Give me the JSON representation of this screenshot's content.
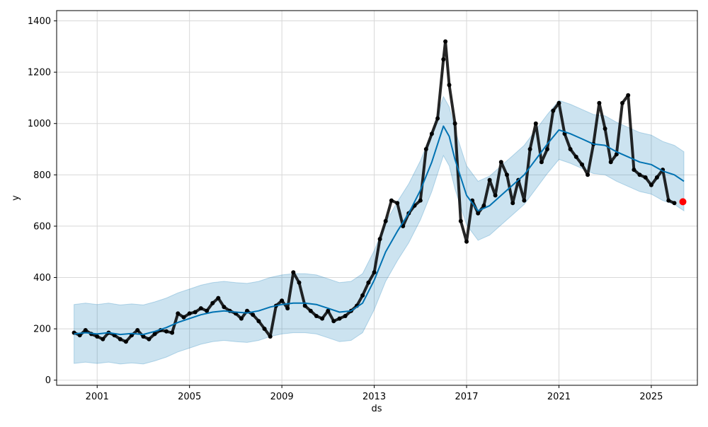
{
  "chart_data": {
    "type": "line",
    "xlabel": "ds",
    "ylabel": "y",
    "xlim": [
      "1999-04-01",
      "2026-12-31"
    ],
    "ylim": [
      -20,
      1440
    ],
    "x_ticks": [
      {
        "date": "2001-01-01",
        "label": "2001"
      },
      {
        "date": "2005-01-01",
        "label": "2005"
      },
      {
        "date": "2009-01-01",
        "label": "2009"
      },
      {
        "date": "2013-01-01",
        "label": "2013"
      },
      {
        "date": "2017-01-01",
        "label": "2017"
      },
      {
        "date": "2021-01-01",
        "label": "2021"
      },
      {
        "date": "2025-01-01",
        "label": "2025"
      }
    ],
    "y_ticks": [
      0,
      200,
      400,
      600,
      800,
      1000,
      1200,
      1400
    ],
    "grid": true,
    "colors": {
      "observed": "#000000",
      "forecast": "#0072B2",
      "interval": "#0072B2",
      "latest": "#ff0000"
    },
    "series": [
      {
        "role": "forecast",
        "points": [
          [
            "2000-01-01",
            180
          ],
          [
            "2000-07-01",
            185
          ],
          [
            "2001-01-01",
            180
          ],
          [
            "2001-07-01",
            185
          ],
          [
            "2002-01-01",
            178
          ],
          [
            "2002-07-01",
            182
          ],
          [
            "2003-01-01",
            178
          ],
          [
            "2003-07-01",
            190
          ],
          [
            "2004-01-01",
            205
          ],
          [
            "2004-07-01",
            225
          ],
          [
            "2005-01-01",
            240
          ],
          [
            "2005-07-01",
            255
          ],
          [
            "2006-01-01",
            265
          ],
          [
            "2006-07-01",
            270
          ],
          [
            "2007-01-01",
            265
          ],
          [
            "2007-07-01",
            262
          ],
          [
            "2008-01-01",
            270
          ],
          [
            "2008-07-01",
            285
          ],
          [
            "2009-01-01",
            295
          ],
          [
            "2009-07-01",
            300
          ],
          [
            "2010-01-01",
            300
          ],
          [
            "2010-07-01",
            295
          ],
          [
            "2011-01-01",
            280
          ],
          [
            "2011-07-01",
            265
          ],
          [
            "2012-01-01",
            270
          ],
          [
            "2012-07-01",
            300
          ],
          [
            "2013-01-01",
            390
          ],
          [
            "2013-07-01",
            500
          ],
          [
            "2014-01-01",
            580
          ],
          [
            "2014-07-01",
            650
          ],
          [
            "2015-01-01",
            740
          ],
          [
            "2015-07-01",
            850
          ],
          [
            "2016-01-01",
            990
          ],
          [
            "2016-04-01",
            950
          ],
          [
            "2016-07-01",
            860
          ],
          [
            "2017-01-01",
            720
          ],
          [
            "2017-07-01",
            660
          ],
          [
            "2018-01-01",
            680
          ],
          [
            "2018-07-01",
            720
          ],
          [
            "2019-01-01",
            760
          ],
          [
            "2019-07-01",
            800
          ],
          [
            "2020-01-01",
            860
          ],
          [
            "2020-07-01",
            920
          ],
          [
            "2021-01-01",
            975
          ],
          [
            "2021-07-01",
            960
          ],
          [
            "2022-01-01",
            940
          ],
          [
            "2022-07-01",
            920
          ],
          [
            "2023-01-01",
            915
          ],
          [
            "2023-07-01",
            890
          ],
          [
            "2024-01-01",
            870
          ],
          [
            "2024-07-01",
            850
          ],
          [
            "2025-01-01",
            840
          ],
          [
            "2025-07-01",
            815
          ],
          [
            "2026-01-01",
            800
          ],
          [
            "2026-06-01",
            775
          ]
        ],
        "interval_halfwidth": 115
      },
      {
        "role": "observed",
        "points": [
          [
            "2000-01-01",
            185
          ],
          [
            "2000-04-01",
            175
          ],
          [
            "2000-07-01",
            195
          ],
          [
            "2000-10-01",
            180
          ],
          [
            "2001-01-01",
            170
          ],
          [
            "2001-04-01",
            160
          ],
          [
            "2001-07-01",
            185
          ],
          [
            "2001-10-01",
            175
          ],
          [
            "2002-01-01",
            160
          ],
          [
            "2002-04-01",
            150
          ],
          [
            "2002-07-01",
            175
          ],
          [
            "2002-10-01",
            195
          ],
          [
            "2003-01-01",
            170
          ],
          [
            "2003-04-01",
            160
          ],
          [
            "2003-07-01",
            180
          ],
          [
            "2003-10-01",
            195
          ],
          [
            "2004-01-01",
            190
          ],
          [
            "2004-04-01",
            185
          ],
          [
            "2004-07-01",
            260
          ],
          [
            "2004-10-01",
            245
          ],
          [
            "2005-01-01",
            260
          ],
          [
            "2005-04-01",
            265
          ],
          [
            "2005-07-01",
            280
          ],
          [
            "2005-10-01",
            270
          ],
          [
            "2006-01-01",
            300
          ],
          [
            "2006-04-01",
            320
          ],
          [
            "2006-07-01",
            285
          ],
          [
            "2006-10-01",
            270
          ],
          [
            "2007-01-01",
            260
          ],
          [
            "2007-04-01",
            240
          ],
          [
            "2007-07-01",
            270
          ],
          [
            "2007-10-01",
            255
          ],
          [
            "2008-01-01",
            230
          ],
          [
            "2008-04-01",
            200
          ],
          [
            "2008-07-01",
            170
          ],
          [
            "2008-10-01",
            290
          ],
          [
            "2009-01-01",
            310
          ],
          [
            "2009-04-01",
            280
          ],
          [
            "2009-07-01",
            420
          ],
          [
            "2009-10-01",
            380
          ],
          [
            "2010-01-01",
            290
          ],
          [
            "2010-04-01",
            270
          ],
          [
            "2010-07-01",
            250
          ],
          [
            "2010-10-01",
            240
          ],
          [
            "2011-01-01",
            270
          ],
          [
            "2011-04-01",
            230
          ],
          [
            "2011-07-01",
            240
          ],
          [
            "2011-10-01",
            250
          ],
          [
            "2012-01-01",
            270
          ],
          [
            "2012-04-01",
            290
          ],
          [
            "2012-07-01",
            330
          ],
          [
            "2012-10-01",
            380
          ],
          [
            "2013-01-01",
            420
          ],
          [
            "2013-04-01",
            550
          ],
          [
            "2013-07-01",
            620
          ],
          [
            "2013-10-01",
            700
          ],
          [
            "2014-01-01",
            690
          ],
          [
            "2014-04-01",
            600
          ],
          [
            "2014-07-01",
            650
          ],
          [
            "2014-10-01",
            680
          ],
          [
            "2015-01-01",
            700
          ],
          [
            "2015-04-01",
            900
          ],
          [
            "2015-07-01",
            960
          ],
          [
            "2015-10-01",
            1020
          ],
          [
            "2016-01-01",
            1250
          ],
          [
            "2016-02-01",
            1320
          ],
          [
            "2016-04-01",
            1150
          ],
          [
            "2016-07-01",
            1000
          ],
          [
            "2016-10-01",
            620
          ],
          [
            "2017-01-01",
            540
          ],
          [
            "2017-04-01",
            700
          ],
          [
            "2017-07-01",
            650
          ],
          [
            "2017-10-01",
            680
          ],
          [
            "2018-01-01",
            780
          ],
          [
            "2018-04-01",
            720
          ],
          [
            "2018-07-01",
            850
          ],
          [
            "2018-10-01",
            800
          ],
          [
            "2019-01-01",
            690
          ],
          [
            "2019-04-01",
            780
          ],
          [
            "2019-07-01",
            700
          ],
          [
            "2019-10-01",
            900
          ],
          [
            "2020-01-01",
            1000
          ],
          [
            "2020-04-01",
            850
          ],
          [
            "2020-07-01",
            900
          ],
          [
            "2020-10-01",
            1050
          ],
          [
            "2021-01-01",
            1080
          ],
          [
            "2021-04-01",
            960
          ],
          [
            "2021-07-01",
            900
          ],
          [
            "2021-10-01",
            870
          ],
          [
            "2022-01-01",
            840
          ],
          [
            "2022-04-01",
            800
          ],
          [
            "2022-07-01",
            920
          ],
          [
            "2022-10-01",
            1080
          ],
          [
            "2023-01-01",
            980
          ],
          [
            "2023-04-01",
            850
          ],
          [
            "2023-07-01",
            880
          ],
          [
            "2023-10-01",
            1080
          ],
          [
            "2024-01-01",
            1110
          ],
          [
            "2024-04-01",
            820
          ],
          [
            "2024-07-01",
            800
          ],
          [
            "2024-10-01",
            790
          ],
          [
            "2025-01-01",
            760
          ],
          [
            "2025-04-01",
            790
          ],
          [
            "2025-07-01",
            820
          ],
          [
            "2025-10-01",
            700
          ],
          [
            "2026-01-01",
            690
          ]
        ]
      },
      {
        "role": "latest",
        "points": [
          [
            "2026-05-15",
            695
          ]
        ]
      }
    ]
  }
}
